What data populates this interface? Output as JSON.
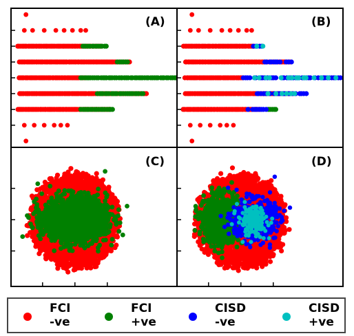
{
  "figure": {
    "panels": [
      "(A)",
      "(B)",
      "(C)",
      "(D)"
    ],
    "colors": {
      "fci_neg": "#ff0000",
      "fci_pos": "#008000",
      "cisd_neg": "#0000ff",
      "cisd_pos": "#00c0c0"
    }
  },
  "legend": [
    {
      "line1": "FCI",
      "line2": "-ve",
      "color": "#ff0000"
    },
    {
      "line1": "FCI",
      "line2": "+ve",
      "color": "#008000"
    },
    {
      "line1": "CISD",
      "line2": "-ve",
      "color": "#0000ff"
    },
    {
      "line1": "CISD",
      "line2": "+ve",
      "color": "#00c0c0"
    }
  ],
  "chart_data": [
    {
      "type": "scatter",
      "panel": "(A)",
      "grid": false,
      "ylim": [
        -4.4,
        4.4
      ],
      "yticks": [
        -3,
        -2,
        -1,
        0,
        1,
        2,
        3
      ],
      "xlim": [
        0,
        10
      ],
      "rows": [
        {
          "y": 4,
          "x": [
            0.9
          ]
        },
        {
          "y": 3,
          "x": [
            0.8,
            1.3,
            2.0,
            2.7,
            3.2,
            3.7,
            4.2,
            4.5
          ]
        },
        {
          "y": 2,
          "x_red": [
            0.4,
            5.5
          ],
          "x_green": [
            4.3,
            5.8
          ]
        },
        {
          "y": 1,
          "x_red": [
            0.5,
            7.2
          ],
          "x_green": [
            6.4,
            7.1
          ]
        },
        {
          "y": 0,
          "x_red": [
            0.5,
            4.5
          ],
          "x_green": [
            4.2,
            10.0
          ]
        },
        {
          "y": -1,
          "x_red": [
            0.5,
            8.2
          ],
          "x_green": [
            5.2,
            8.0
          ]
        },
        {
          "y": -2,
          "x_red": [
            0.4,
            6.0
          ],
          "x_green": [
            4.2,
            6.2
          ]
        },
        {
          "y": -3,
          "x": [
            0.8,
            1.4,
            2.0,
            2.6,
            3.0,
            3.4
          ]
        },
        {
          "y": -4,
          "x": [
            0.9
          ]
        }
      ]
    },
    {
      "type": "scatter",
      "panel": "(B)",
      "grid": false,
      "ylim": [
        -4.4,
        4.4
      ],
      "yticks": [
        -3,
        -2,
        -1,
        0,
        1,
        2,
        3
      ],
      "xlim": [
        0,
        10
      ],
      "rows": [
        {
          "y": 4,
          "x": [
            0.9
          ]
        },
        {
          "y": 3,
          "x": [
            0.8,
            1.3,
            2.0,
            2.7,
            3.2,
            3.7,
            4.2,
            4.5
          ]
        },
        {
          "y": 2,
          "x_red": [
            0.4,
            4.7
          ],
          "x_blue": [
            4.6,
            5.2
          ],
          "x_cyan": [
            4.8,
            5.3
          ]
        },
        {
          "y": 1,
          "x_red": [
            0.5,
            6.8
          ],
          "x_blue": [
            5.3,
            7.2
          ]
        },
        {
          "y": 0,
          "x_red": [
            0.5,
            4.0
          ],
          "x_blue": [
            4.0,
            9.9
          ],
          "x_cyan": [
            4.5,
            9.6
          ]
        },
        {
          "y": -1,
          "x_red": [
            0.5,
            7.0
          ],
          "x_blue": [
            4.8,
            7.8
          ],
          "x_cyan": [
            5.5,
            7.2
          ]
        },
        {
          "y": -2,
          "x_red": [
            0.4,
            5.0
          ],
          "x_green": [
            5.5,
            6.0
          ],
          "x_blue": [
            4.3,
            5.4
          ]
        },
        {
          "y": -3,
          "x": [
            0.8,
            1.4,
            2.0,
            2.6,
            3.0,
            3.4
          ]
        },
        {
          "y": -4,
          "x": [
            0.9
          ]
        }
      ]
    },
    {
      "type": "scatter",
      "panel": "(C)",
      "grid": false,
      "xticks": [
        -1,
        0,
        1
      ],
      "yticks": [
        -1,
        0,
        1
      ],
      "series": [
        {
          "name": "FCI -ve",
          "center": [
            0.0,
            -0.05
          ],
          "spread": [
            0.95,
            0.95
          ]
        },
        {
          "name": "FCI +ve",
          "center": [
            0.0,
            0.0
          ],
          "spread": [
            0.65,
            0.45
          ]
        }
      ]
    },
    {
      "type": "scatter",
      "panel": "(D)",
      "grid": false,
      "xticks": [
        -1,
        0,
        1
      ],
      "yticks": [
        -1,
        0,
        1
      ],
      "series": [
        {
          "name": "FCI -ve",
          "center": [
            0.0,
            -0.05
          ],
          "spread": [
            0.95,
            0.95
          ]
        },
        {
          "name": "FCI +ve",
          "center": [
            -0.6,
            0.0
          ],
          "spread": [
            0.35,
            0.45
          ]
        },
        {
          "name": "CISD -ve",
          "center": [
            0.4,
            0.0
          ],
          "spread": [
            0.45,
            0.4
          ]
        },
        {
          "name": "CISD +ve",
          "center": [
            0.35,
            -0.05
          ],
          "spread": [
            0.3,
            0.3
          ]
        }
      ]
    }
  ]
}
